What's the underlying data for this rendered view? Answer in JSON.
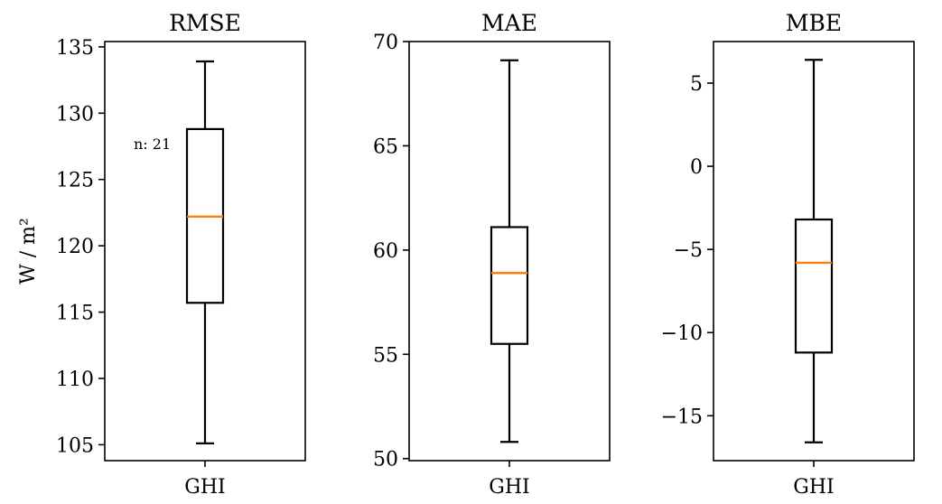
{
  "colors": {
    "box": "#000000",
    "median": "#ff7f0e"
  },
  "chart_data": [
    {
      "type": "box",
      "title": "RMSE",
      "ylabel": "W / m²",
      "categories": [
        "GHI"
      ],
      "ylim": [
        103.8,
        135.4
      ],
      "yticks": [
        105,
        110,
        115,
        120,
        125,
        130,
        135
      ],
      "yticklabels": [
        "105",
        "110",
        "115",
        "120",
        "125",
        "130",
        "135"
      ],
      "stats": {
        "whisker_low": 105.1,
        "q1": 115.7,
        "median": 122.2,
        "q3": 128.8,
        "whisker_high": 133.9
      },
      "annotation": "n: 21"
    },
    {
      "type": "box",
      "title": "MAE",
      "ylabel": "",
      "categories": [
        "GHI"
      ],
      "ylim": [
        49.9,
        70.0
      ],
      "yticks": [
        50,
        55,
        60,
        65,
        70
      ],
      "yticklabels": [
        "50",
        "55",
        "60",
        "65",
        "70"
      ],
      "stats": {
        "whisker_low": 50.8,
        "q1": 55.5,
        "median": 58.9,
        "q3": 61.1,
        "whisker_high": 69.1
      }
    },
    {
      "type": "box",
      "title": "MBE",
      "ylabel": "",
      "categories": [
        "GHI"
      ],
      "ylim": [
        -17.7,
        7.5
      ],
      "yticks": [
        -15,
        -10,
        -5,
        0,
        5
      ],
      "yticklabels": [
        "−15",
        "−10",
        "−5",
        "0",
        "5"
      ],
      "stats": {
        "whisker_low": -16.6,
        "q1": -11.2,
        "median": -5.8,
        "q3": -3.2,
        "whisker_high": 6.4
      }
    }
  ]
}
